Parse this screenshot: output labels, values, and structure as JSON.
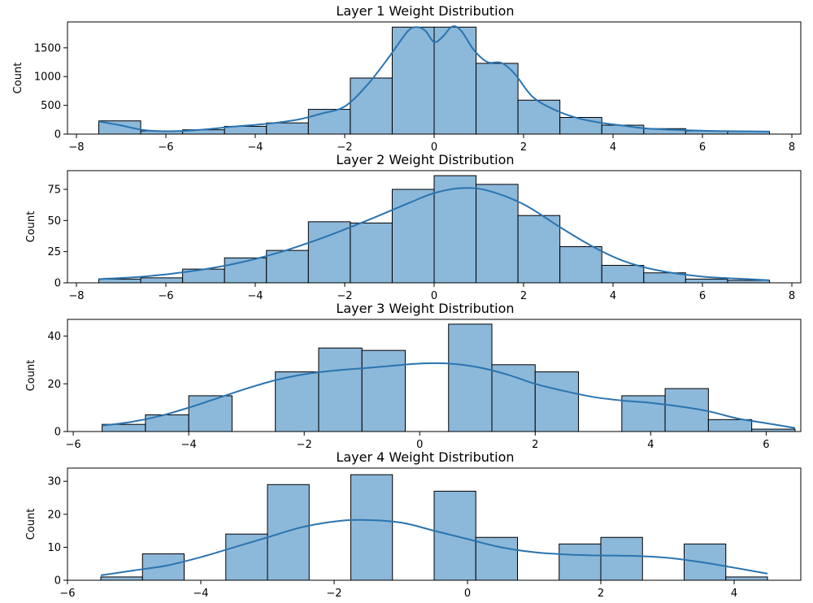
{
  "chart_data": [
    {
      "type": "histogram",
      "title": "Layer 1 Weight Distribution",
      "xlabel": "",
      "ylabel": "Count",
      "xlim": [
        -8.2,
        8.2
      ],
      "ylim": [
        0,
        1950
      ],
      "xticks": [
        -8,
        -6,
        -4,
        -2,
        0,
        2,
        4,
        6,
        8
      ],
      "yticks": [
        0,
        500,
        1000,
        1500
      ],
      "bin_edges": [
        -7.5,
        -6.5625,
        -5.625,
        -4.6875,
        -3.75,
        -2.8125,
        -1.875,
        -0.9375,
        0,
        0.9375,
        1.875,
        2.8125,
        3.75,
        4.6875,
        5.625,
        6.5625,
        7.5
      ],
      "counts": [
        230,
        55,
        75,
        135,
        195,
        430,
        975,
        1860,
        1860,
        1230,
        590,
        290,
        155,
        95,
        55,
        45
      ],
      "kde": [
        [
          -7.5,
          220
        ],
        [
          -7,
          150
        ],
        [
          -6.5,
          70
        ],
        [
          -6,
          50
        ],
        [
          -5.5,
          60
        ],
        [
          -5,
          90
        ],
        [
          -4.5,
          130
        ],
        [
          -4,
          160
        ],
        [
          -3.5,
          200
        ],
        [
          -3,
          260
        ],
        [
          -2.5,
          360
        ],
        [
          -2,
          480
        ],
        [
          -1.5,
          850
        ],
        [
          -1,
          1350
        ],
        [
          -0.6,
          1780
        ],
        [
          -0.4,
          1860
        ],
        [
          -0.2,
          1800
        ],
        [
          0,
          1600
        ],
        [
          0.2,
          1700
        ],
        [
          0.4,
          1870
        ],
        [
          0.6,
          1800
        ],
        [
          0.9,
          1450
        ],
        [
          1.2,
          1250
        ],
        [
          1.5,
          1240
        ],
        [
          1.8,
          1050
        ],
        [
          2.2,
          650
        ],
        [
          2.7,
          420
        ],
        [
          3.2,
          280
        ],
        [
          3.7,
          200
        ],
        [
          4.2,
          150
        ],
        [
          4.7,
          100
        ],
        [
          5.2,
          80
        ],
        [
          5.7,
          65
        ],
        [
          6.2,
          55
        ],
        [
          6.7,
          50
        ],
        [
          7.5,
          45
        ]
      ]
    },
    {
      "type": "histogram",
      "title": "Layer 2 Weight Distribution",
      "xlabel": "",
      "ylabel": "Count",
      "xlim": [
        -8.2,
        8.2
      ],
      "ylim": [
        0,
        90
      ],
      "xticks": [
        -8,
        -6,
        -4,
        -2,
        0,
        2,
        4,
        6,
        8
      ],
      "yticks": [
        0,
        25,
        50,
        75
      ],
      "bin_edges": [
        -7.5,
        -6.5625,
        -5.625,
        -4.6875,
        -3.75,
        -2.8125,
        -1.875,
        -0.9375,
        0,
        0.9375,
        1.875,
        2.8125,
        3.75,
        4.6875,
        5.625,
        6.5625,
        7.5
      ],
      "counts": [
        3,
        4,
        11,
        20,
        26,
        49,
        48,
        75,
        86,
        79,
        54,
        29,
        14,
        8,
        3,
        2
      ],
      "kde": [
        [
          -7.5,
          3
        ],
        [
          -6.5,
          5
        ],
        [
          -5.5,
          9
        ],
        [
          -4.5,
          15
        ],
        [
          -3.5,
          24
        ],
        [
          -2.5,
          36
        ],
        [
          -1.5,
          50
        ],
        [
          -0.5,
          65
        ],
        [
          0,
          72
        ],
        [
          0.6,
          76
        ],
        [
          1.2,
          74
        ],
        [
          2,
          63
        ],
        [
          2.8,
          45
        ],
        [
          3.5,
          30
        ],
        [
          4.2,
          18
        ],
        [
          5,
          10
        ],
        [
          6,
          5
        ],
        [
          7,
          3
        ],
        [
          7.5,
          2
        ]
      ]
    },
    {
      "type": "histogram",
      "title": "Layer 3 Weight Distribution",
      "xlabel": "",
      "ylabel": "Count",
      "xlim": [
        -6.1,
        6.6
      ],
      "ylim": [
        0,
        47
      ],
      "xticks": [
        -6,
        -4,
        -2,
        0,
        2,
        4,
        6
      ],
      "yticks": [
        0,
        20,
        40
      ],
      "bin_edges": [
        -5.5,
        -4.75,
        -4,
        -3.25,
        -2.5,
        -1.75,
        -1,
        -0.25,
        0.5,
        1.25,
        2,
        2.75,
        3.5,
        4.25,
        5,
        5.75,
        6.5
      ],
      "counts": [
        3,
        7,
        15,
        0,
        25,
        35,
        34,
        0,
        45,
        28,
        25,
        0,
        15,
        18,
        5,
        1
      ],
      "kde": [
        [
          -5.5,
          2.5
        ],
        [
          -5,
          4
        ],
        [
          -4.5,
          6.5
        ],
        [
          -4,
          10
        ],
        [
          -3.5,
          14
        ],
        [
          -3,
          18
        ],
        [
          -2.5,
          21.5
        ],
        [
          -2,
          24
        ],
        [
          -1.5,
          25.5
        ],
        [
          -1,
          26.5
        ],
        [
          -0.5,
          27.5
        ],
        [
          0,
          28.5
        ],
        [
          0.5,
          28.5
        ],
        [
          1,
          27
        ],
        [
          1.5,
          24
        ],
        [
          2,
          20
        ],
        [
          2.5,
          17
        ],
        [
          3,
          14.5
        ],
        [
          3.5,
          13
        ],
        [
          4,
          12
        ],
        [
          4.5,
          10.5
        ],
        [
          5,
          8.5
        ],
        [
          5.5,
          5.5
        ],
        [
          6,
          3.5
        ],
        [
          6.5,
          1.5
        ]
      ]
    },
    {
      "type": "histogram",
      "title": "Layer 4 Weight Distribution",
      "xlabel": "",
      "ylabel": "Count",
      "xlim": [
        -6,
        5
      ],
      "ylim": [
        0,
        34
      ],
      "xticks": [
        -6,
        -4,
        -2,
        0,
        2,
        4
      ],
      "yticks": [
        0,
        10,
        20,
        30
      ],
      "bin_edges": [
        -5.5,
        -4.875,
        -4.25,
        -3.625,
        -3,
        -2.375,
        -1.75,
        -1.125,
        -0.5,
        0.125,
        0.75,
        1.375,
        2,
        2.625,
        3.25,
        3.875,
        4.5
      ],
      "counts": [
        1,
        8,
        0,
        14,
        29,
        0,
        32,
        0,
        27,
        13,
        0,
        11,
        13,
        0,
        11,
        1
      ],
      "kde": [
        [
          -5.5,
          1.5
        ],
        [
          -5,
          3
        ],
        [
          -4.5,
          4.5
        ],
        [
          -4,
          7
        ],
        [
          -3.5,
          10
        ],
        [
          -3,
          13
        ],
        [
          -2.5,
          16
        ],
        [
          -2,
          17.8
        ],
        [
          -1.6,
          18.3
        ],
        [
          -1,
          17.5
        ],
        [
          -0.5,
          15
        ],
        [
          0,
          12.5
        ],
        [
          0.5,
          10
        ],
        [
          1,
          8.5
        ],
        [
          1.5,
          7.8
        ],
        [
          2,
          7.5
        ],
        [
          2.5,
          7.4
        ],
        [
          3,
          6.8
        ],
        [
          3.5,
          5.5
        ],
        [
          4,
          3.8
        ],
        [
          4.5,
          2
        ]
      ]
    }
  ]
}
